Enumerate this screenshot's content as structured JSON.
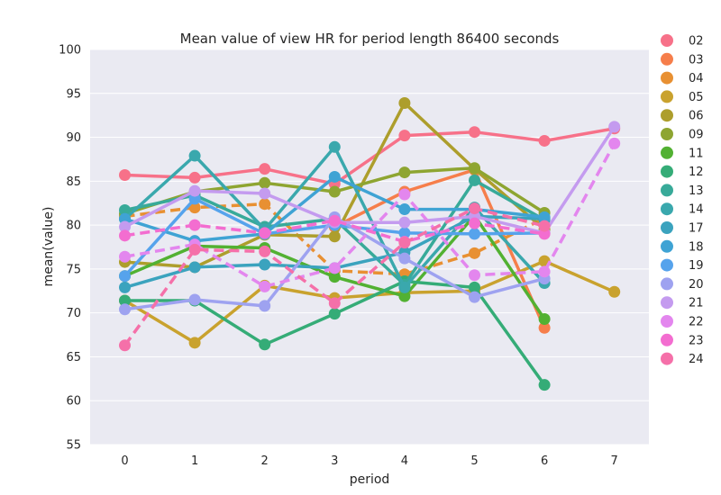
{
  "chart_data": {
    "type": "line",
    "title": "Mean value of view HR for period length 86400 seconds",
    "xlabel": "period",
    "ylabel": "mean(value)",
    "categories": [
      "0",
      "1",
      "2",
      "3",
      "4",
      "5",
      "6",
      "7"
    ],
    "ylim": [
      55,
      100
    ],
    "yticks": [
      55,
      60,
      65,
      70,
      75,
      80,
      85,
      90,
      95,
      100
    ],
    "grid": true,
    "legend_position": "right",
    "series": [
      {
        "name": "02",
        "color": "#f77189",
        "dashed": false,
        "values": [
          85.7,
          85.4,
          86.4,
          84.7,
          90.2,
          90.6,
          89.6,
          91.0
        ]
      },
      {
        "name": "03",
        "color": "#f67e4b",
        "dashed": false,
        "values": [
          null,
          null,
          null,
          79.8,
          83.8,
          86.3,
          68.3,
          null
        ]
      },
      {
        "name": "04",
        "color": "#e89032",
        "dashed": true,
        "values": [
          81.0,
          82.0,
          82.4,
          74.8,
          74.4,
          76.8,
          80.8,
          null
        ]
      },
      {
        "name": "05",
        "color": "#c9a22e",
        "dashed": false,
        "values": [
          71.4,
          66.6,
          73.1,
          71.7,
          72.3,
          72.5,
          75.9,
          72.4
        ]
      },
      {
        "name": "06",
        "color": "#ad9e2c",
        "dashed": false,
        "values": [
          75.8,
          75.2,
          78.9,
          78.7,
          93.9,
          86.4,
          79.5,
          null
        ]
      },
      {
        "name": "09",
        "color": "#8ea531",
        "dashed": false,
        "values": [
          81.3,
          83.8,
          84.8,
          83.8,
          86.0,
          86.5,
          81.4,
          null
        ]
      },
      {
        "name": "11",
        "color": "#52b132",
        "dashed": false,
        "values": [
          74.2,
          77.6,
          77.4,
          74.1,
          71.9,
          81.1,
          69.3,
          null
        ]
      },
      {
        "name": "12",
        "color": "#35ac77",
        "dashed": false,
        "values": [
          71.4,
          71.4,
          66.4,
          69.9,
          73.6,
          72.9,
          61.8,
          null
        ]
      },
      {
        "name": "13",
        "color": "#38aa99",
        "dashed": false,
        "values": [
          81.7,
          83.4,
          79.8,
          80.7,
          73.2,
          85.1,
          80.6,
          null
        ]
      },
      {
        "name": "14",
        "color": "#3aa8ad",
        "dashed": false,
        "values": [
          80.7,
          87.9,
          79.5,
          88.9,
          72.9,
          82.0,
          73.4,
          null
        ]
      },
      {
        "name": "17",
        "color": "#3ba3be",
        "dashed": false,
        "values": [
          72.9,
          75.2,
          75.5,
          75.1,
          76.9,
          81.0,
          80.7,
          null
        ]
      },
      {
        "name": "18",
        "color": "#3fa3d4",
        "dashed": false,
        "values": [
          80.7,
          78.2,
          79.0,
          85.5,
          81.8,
          81.8,
          80.9,
          null
        ]
      },
      {
        "name": "19",
        "color": "#56a3ec",
        "dashed": false,
        "values": [
          74.2,
          83.0,
          79.0,
          80.0,
          79.1,
          79.0,
          79.1,
          null
        ]
      },
      {
        "name": "20",
        "color": "#9ea2f0",
        "dashed": false,
        "values": [
          70.4,
          71.5,
          70.8,
          80.9,
          76.2,
          71.8,
          73.9,
          null
        ]
      },
      {
        "name": "21",
        "color": "#c49bef",
        "dashed": false,
        "values": [
          79.8,
          83.9,
          83.6,
          80.3,
          80.3,
          81.0,
          79.1,
          91.2
        ]
      },
      {
        "name": "22",
        "color": "#e386ee",
        "dashed": true,
        "values": [
          76.4,
          77.8,
          73.0,
          75.1,
          83.5,
          74.3,
          74.7,
          89.3
        ]
      },
      {
        "name": "23",
        "color": "#f36dd0",
        "dashed": true,
        "values": [
          78.8,
          80.0,
          79.1,
          80.5,
          78.1,
          80.2,
          79.0,
          null
        ]
      },
      {
        "name": "24",
        "color": "#f570a9",
        "dashed": true,
        "values": [
          66.3,
          77.2,
          77.0,
          71.1,
          78.0,
          81.9,
          79.9,
          null
        ]
      }
    ]
  }
}
